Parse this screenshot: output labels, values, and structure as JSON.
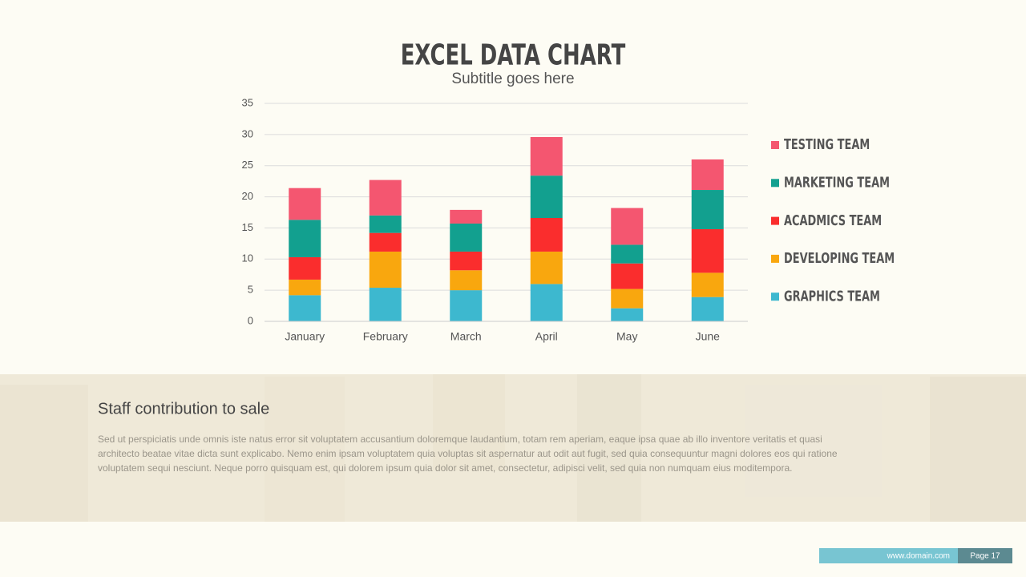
{
  "chart_data": {
    "type": "stacked_bar",
    "title": "EXCEL DATA CHART",
    "subtitle": "Subtitle goes here",
    "categories": [
      "January",
      "February",
      "March",
      "April",
      "May",
      "June"
    ],
    "series": [
      {
        "name": "GRAPHICS TEAM",
        "color": "#3db8cf",
        "values": [
          4.2,
          5.4,
          5.0,
          6.0,
          2.1,
          3.9
        ]
      },
      {
        "name": "DEVELOPING TEAM",
        "color": "#f9a70e",
        "values": [
          2.5,
          5.8,
          3.2,
          5.2,
          3.1,
          3.9
        ]
      },
      {
        "name": "ACADMICS TEAM",
        "color": "#fa2d2d",
        "values": [
          3.6,
          3.0,
          3.0,
          5.4,
          4.1,
          7.0
        ]
      },
      {
        "name": "MARKETING TEAM",
        "color": "#12a08f",
        "values": [
          6.0,
          2.8,
          4.5,
          6.8,
          3.0,
          6.3
        ]
      },
      {
        "name": "TESTING TEAM",
        "color": "#f45670",
        "values": [
          5.1,
          5.7,
          2.2,
          6.2,
          5.9,
          4.9
        ]
      }
    ],
    "ylim": [
      0,
      35
    ],
    "yticks": [
      0,
      5,
      10,
      15,
      20,
      25,
      30,
      35
    ],
    "grid": true,
    "legend": "right"
  },
  "section": {
    "title": "Staff contribution to sale",
    "paragraph_lines": [
      "Sed ut perspiciatis unde omnis iste natus error sit voluptatem accusantium doloremque laudantium, totam rem aperiam, eaque ipsa quae ab illo inventore veritatis et quasi",
      "architecto beatae vitae dicta sunt explicabo. Nemo enim ipsam voluptatem quia voluptas sit aspernatur aut odit aut fugit, sed quia consequuntur magni dolores eos qui ratione",
      "voluptatem sequi nesciunt. Neque porro quisquam est, qui dolorem ipsum quia dolor sit amet, consectetur, adipisci velit, sed quia non numquam eius moditempora."
    ]
  },
  "footer": {
    "website": "www.domain.com",
    "page": "Page 17"
  }
}
